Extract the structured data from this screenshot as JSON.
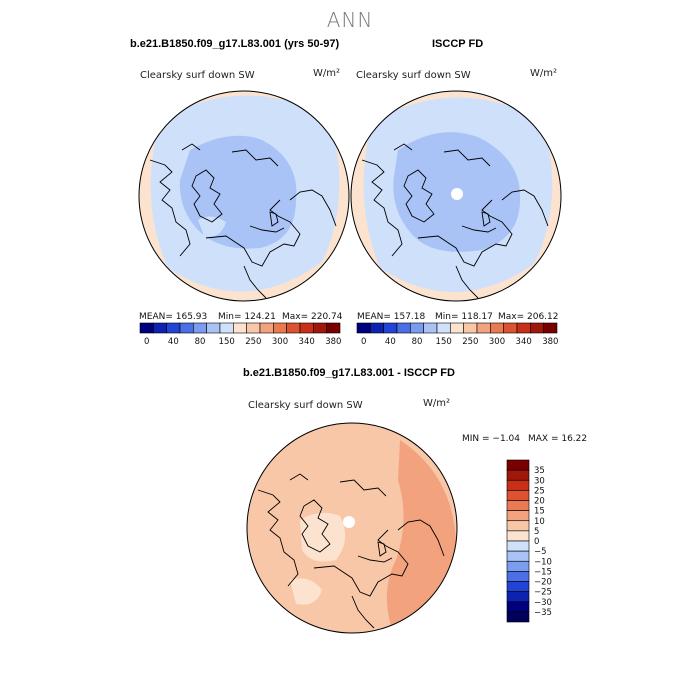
{
  "page": {
    "title": "ANN"
  },
  "panels": [
    {
      "title": "b.e21.B1850.f09_g17.L83.001 (yrs 50-97)",
      "variable": "Clearsky surf down SW",
      "units": "W/m²",
      "stats": {
        "mean": "MEAN= 165.93",
        "min": "Min= 124.21",
        "max": "Max= 220.74"
      }
    },
    {
      "title": "ISCCP FD",
      "variable": "Clearsky surf down SW",
      "units": "W/m²",
      "stats": {
        "mean": "MEAN= 157.18",
        "min": "Min= 118.17",
        "max": "Max= 206.12"
      }
    },
    {
      "title": "b.e21.B1850.f09_g17.L83.001 - ISCCP FD",
      "variable": "Clearsky surf down SW",
      "units": "W/m²",
      "stats": {
        "min": "MIN =  −1.04",
        "max": "MAX =  16.22"
      }
    }
  ],
  "chart_data": [
    {
      "type": "heatmap",
      "projection": "north polar stereographic",
      "colorbar": {
        "orientation": "horizontal",
        "tick_labels": [
          "0",
          "40",
          "80",
          "150",
          "250",
          "300",
          "340",
          "380"
        ],
        "levels": [
          0,
          20,
          40,
          60,
          80,
          110,
          150,
          200,
          250,
          275,
          300,
          320,
          340,
          360,
          380
        ],
        "colors": [
          "#00007f",
          "#0b23b0",
          "#2244d6",
          "#4a6fe6",
          "#7b9df0",
          "#a9c3f7",
          "#cfe0fb",
          "#fbe3cf",
          "#f8c7a8",
          "#f2a37e",
          "#ea7a52",
          "#dd5230",
          "#c92f17",
          "#a0180a",
          "#7a0000"
        ]
      },
      "mean": 165.93,
      "min": 124.21,
      "max": 220.74,
      "regions": [
        {
          "region": "outer ring",
          "class": "150-200",
          "color": "#cfe0fb"
        },
        {
          "region": "arctic interior",
          "class": "110-150",
          "color": "#a9c3f7"
        },
        {
          "region": "southern margin",
          "class": "250-275",
          "color": "#fbe3cf"
        }
      ]
    },
    {
      "type": "heatmap",
      "projection": "north polar stereographic",
      "colorbar": {
        "orientation": "horizontal",
        "tick_labels": [
          "0",
          "40",
          "80",
          "150",
          "250",
          "300",
          "340",
          "380"
        ]
      },
      "mean": 157.18,
      "min": 118.17,
      "max": 206.12,
      "regions": [
        {
          "region": "outer ring",
          "class": "150-200",
          "color": "#cfe0fb"
        },
        {
          "region": "arctic interior",
          "class": "110-150",
          "color": "#a9c3f7"
        },
        {
          "region": "southern margin",
          "class": "250-275",
          "color": "#fbe3cf"
        }
      ]
    },
    {
      "type": "heatmap",
      "projection": "north polar stereographic",
      "colorbar": {
        "orientation": "vertical",
        "tick_labels": [
          "35",
          "30",
          "25",
          "20",
          "15",
          "10",
          "5",
          "0",
          "−5",
          "−10",
          "−15",
          "−20",
          "−25",
          "−30",
          "−35"
        ],
        "colors": [
          "#7a0000",
          "#a0180a",
          "#c92f17",
          "#dd5230",
          "#ea7a52",
          "#f2a37e",
          "#f8c7a8",
          "#fbe3cf",
          "#cfe0fb",
          "#a9c3f7",
          "#7b9df0",
          "#4a6fe6",
          "#2244d6",
          "#0b23b0",
          "#00007f",
          "#00005a"
        ]
      },
      "min": -1.04,
      "max": 16.22,
      "regions": [
        {
          "region": "most of domain",
          "class": "5-10",
          "color": "#f8c7a8"
        },
        {
          "region": "eastern sector",
          "class": "10-15",
          "color": "#f2a37e"
        },
        {
          "region": "arctic interior patches",
          "class": "0-5",
          "color": "#fbe3cf"
        }
      ]
    }
  ]
}
